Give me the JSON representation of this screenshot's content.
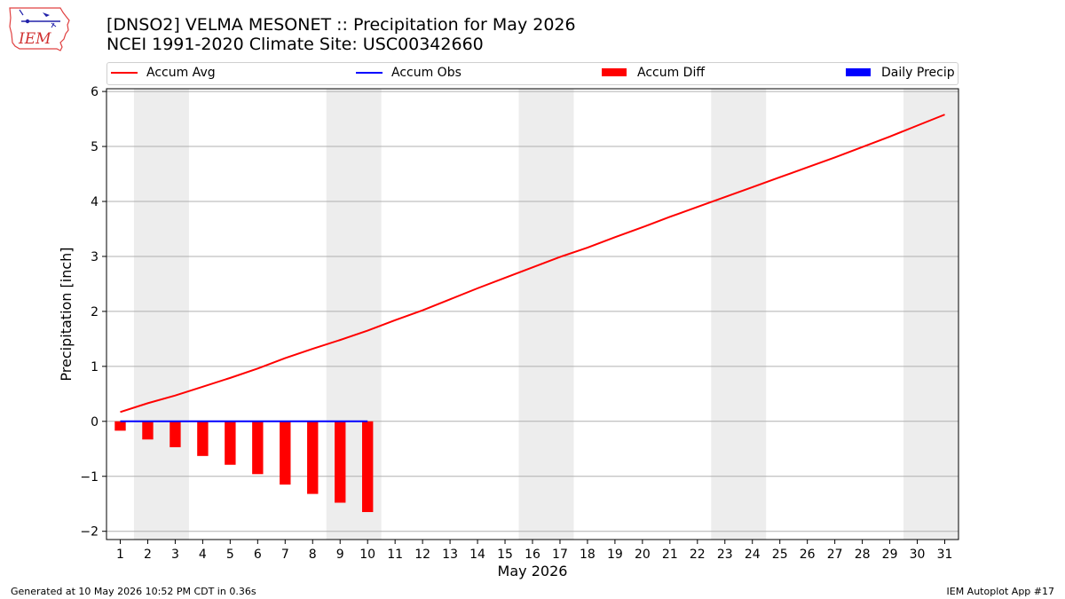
{
  "page": {
    "title_line1": "[DNSO2] VELMA MESONET :: Precipitation for May 2026",
    "title_line2": "NCEI 1991-2020 Climate Site: USC00342660",
    "logo_text": "IEM",
    "footer_left": "Generated at 10 May 2026 10:52 PM CDT in 0.36s",
    "footer_right": "IEM Autoplot App #17"
  },
  "colors": {
    "accum_avg": "#ff0000",
    "accum_obs": "#0000ff",
    "accum_diff": "#ff0000",
    "daily_precip": "#0000ff",
    "weekend_band": "#ededed",
    "grid": "#b0b0b0"
  },
  "chart_data": {
    "type": "line",
    "title": "[DNSO2] VELMA MESONET :: Precipitation for May 2026",
    "subtitle": "NCEI 1991-2020 Climate Site: USC00342660",
    "xlabel": "May 2026",
    "ylabel": "Precipitation [inch]",
    "xlim": [
      0.5,
      31.5
    ],
    "ylim": [
      -2.15,
      6.05
    ],
    "grid": "horizontal",
    "legend_position": "top",
    "x": [
      1,
      2,
      3,
      4,
      5,
      6,
      7,
      8,
      9,
      10,
      11,
      12,
      13,
      14,
      15,
      16,
      17,
      18,
      19,
      20,
      21,
      22,
      23,
      24,
      25,
      26,
      27,
      28,
      29,
      30,
      31
    ],
    "x_tick_labels": [
      "1",
      "2",
      "3",
      "4",
      "5",
      "6",
      "7",
      "8",
      "9",
      "10",
      "11",
      "12",
      "13",
      "14",
      "15",
      "16",
      "17",
      "18",
      "19",
      "20",
      "21",
      "22",
      "23",
      "24",
      "25",
      "26",
      "27",
      "28",
      "29",
      "30",
      "31"
    ],
    "y_ticks": [
      -2,
      -1,
      0,
      1,
      2,
      3,
      4,
      5,
      6
    ],
    "y_tick_labels": [
      "−2",
      "−1",
      "0",
      "1",
      "2",
      "3",
      "4",
      "5",
      "6"
    ],
    "weekend_bands": [
      [
        1.5,
        3.5
      ],
      [
        8.5,
        10.5
      ],
      [
        15.5,
        17.5
      ],
      [
        22.5,
        24.5
      ],
      [
        29.5,
        31.5
      ]
    ],
    "series": [
      {
        "name": "Accum Avg",
        "kind": "line",
        "x": [
          1,
          2,
          3,
          4,
          5,
          6,
          7,
          8,
          9,
          10,
          11,
          12,
          13,
          14,
          15,
          16,
          17,
          18,
          19,
          20,
          21,
          22,
          23,
          24,
          25,
          26,
          27,
          28,
          29,
          30,
          31
        ],
        "values": [
          0.17,
          0.33,
          0.47,
          0.63,
          0.79,
          0.96,
          1.15,
          1.32,
          1.48,
          1.65,
          1.84,
          2.02,
          2.22,
          2.42,
          2.61,
          2.8,
          2.99,
          3.16,
          3.35,
          3.53,
          3.72,
          3.9,
          4.08,
          4.26,
          4.44,
          4.62,
          4.8,
          4.99,
          5.18,
          5.38,
          5.58
        ]
      },
      {
        "name": "Accum Obs",
        "kind": "line",
        "x": [
          1,
          2,
          3,
          4,
          5,
          6,
          7,
          8,
          9,
          10
        ],
        "values": [
          0,
          0,
          0,
          0,
          0,
          0,
          0,
          0,
          0,
          0
        ]
      },
      {
        "name": "Accum Diff",
        "kind": "bar",
        "x": [
          1,
          2,
          3,
          4,
          5,
          6,
          7,
          8,
          9,
          10
        ],
        "values": [
          -0.17,
          -0.33,
          -0.47,
          -0.63,
          -0.79,
          -0.96,
          -1.15,
          -1.32,
          -1.48,
          -1.65
        ]
      },
      {
        "name": "Daily Precip",
        "kind": "bar",
        "x": [
          1,
          2,
          3,
          4,
          5,
          6,
          7,
          8,
          9,
          10
        ],
        "values": [
          0,
          0,
          0,
          0,
          0,
          0,
          0,
          0,
          0,
          0
        ]
      }
    ]
  }
}
